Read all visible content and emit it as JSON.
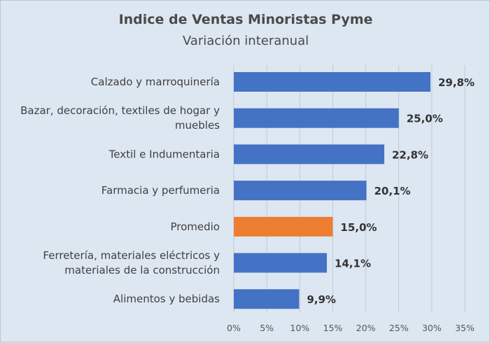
{
  "chart_data": {
    "type": "bar",
    "orientation": "horizontal",
    "title": "Indice de Ventas Minoristas Pyme",
    "subtitle": "Variación interanual",
    "categories": [
      [
        "Calzado y marroquinería"
      ],
      [
        "Bazar, decoración, textiles de hogar y",
        "muebles"
      ],
      [
        "Textil e Indumentaria"
      ],
      [
        "Farmacia y perfumeria"
      ],
      [
        "Promedio"
      ],
      [
        "Ferretería, materiales eléctricos y",
        "materiales de la construcción"
      ],
      [
        "Alimentos y bebidas"
      ]
    ],
    "values": [
      29.8,
      25.0,
      22.8,
      20.1,
      15.0,
      14.1,
      9.9
    ],
    "value_labels": [
      "29,8%",
      "25,0%",
      "22,8%",
      "20,1%",
      "15,0%",
      "14,1%",
      "9,9%"
    ],
    "highlight_index": 4,
    "xlim": [
      0,
      35
    ],
    "xticks": [
      0,
      5,
      10,
      15,
      20,
      25,
      30,
      35
    ],
    "xtick_labels": [
      "0%",
      "5%",
      "10%",
      "15%",
      "20%",
      "25%",
      "30%",
      "35%"
    ],
    "grid": "vertical",
    "legend": "none",
    "colors": {
      "bar": "#4472c4",
      "highlight": "#ed7d31",
      "gridline": "#bfcad8",
      "background": "#dde7f2"
    }
  }
}
